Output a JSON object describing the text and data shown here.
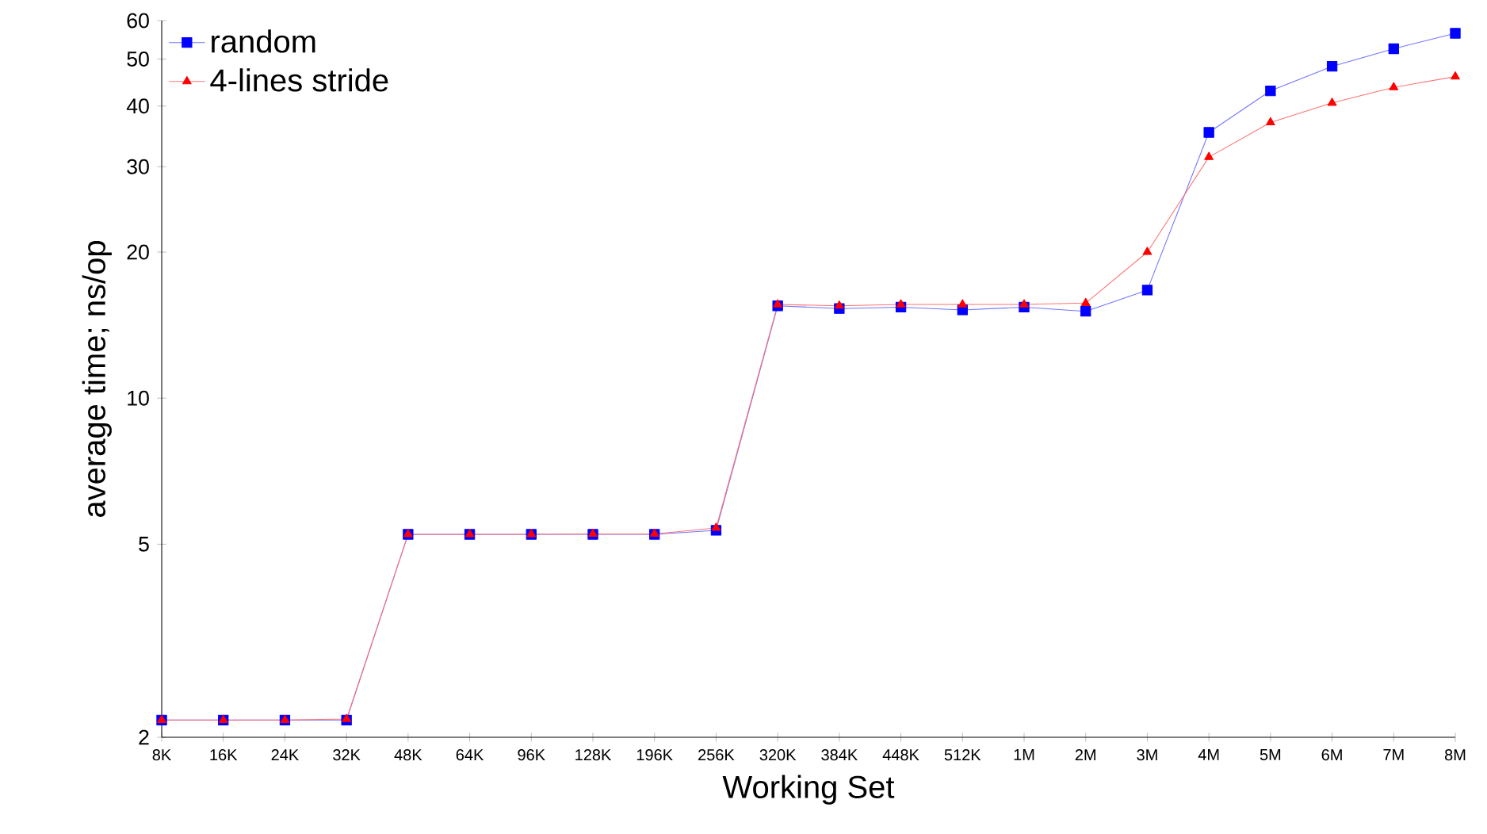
{
  "chart_data": {
    "type": "line",
    "xlabel": "Working Set",
    "ylabel": "average time; ns/op",
    "categories": [
      "8K",
      "16K",
      "24K",
      "32K",
      "48K",
      "64K",
      "96K",
      "128K",
      "196K",
      "256K",
      "320K",
      "384K",
      "448K",
      "512K",
      "1M",
      "2M",
      "3M",
      "4M",
      "5M",
      "6M",
      "7M",
      "8M"
    ],
    "series": [
      {
        "name": "random",
        "color": "#0000ff",
        "marker": "square",
        "values": [
          2.17,
          2.17,
          2.17,
          2.17,
          5.24,
          5.24,
          5.24,
          5.24,
          5.24,
          5.34,
          15.5,
          15.3,
          15.4,
          15.2,
          15.4,
          15.1,
          16.7,
          35.3,
          43,
          48.3,
          52.5,
          56.5
        ]
      },
      {
        "name": "4-lines stride",
        "color": "#ff0000",
        "marker": "triangle",
        "values": [
          2.17,
          2.17,
          2.17,
          2.18,
          5.24,
          5.24,
          5.24,
          5.25,
          5.25,
          5.4,
          15.6,
          15.5,
          15.6,
          15.6,
          15.6,
          15.7,
          20,
          31.4,
          37,
          40.6,
          43.7,
          46
        ]
      }
    ],
    "log": true,
    "ylim": [
      2,
      60
    ],
    "yticks": [
      2,
      5,
      10,
      20,
      30,
      40,
      50,
      60
    ],
    "legend": "top left",
    "grid": false,
    "line_style": "solid"
  }
}
